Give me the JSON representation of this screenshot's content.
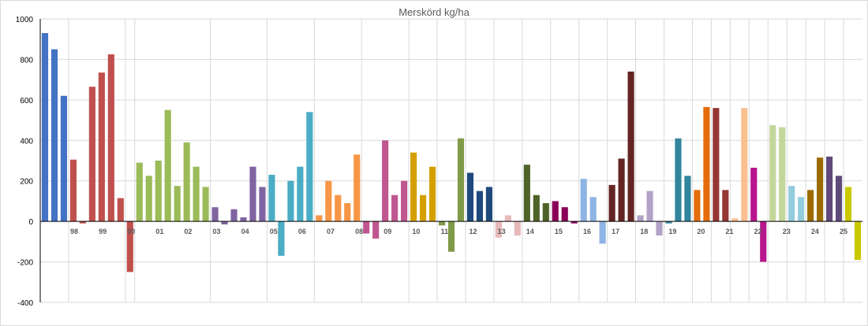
{
  "chart_data": {
    "type": "bar",
    "title": "Merskörd kg/ha",
    "xlabel": "",
    "ylabel": "",
    "ylim": [
      -400,
      1000
    ],
    "yticks": [
      -400,
      -200,
      0,
      200,
      400,
      600,
      800,
      1000
    ],
    "grid": true,
    "legend": "none",
    "groups": [
      {
        "label": "",
        "color": "#4472c4",
        "values": [
          930,
          850,
          620
        ]
      },
      {
        "label": "98",
        "color": "#c0504d",
        "values": [
          305,
          -10,
          665,
          735,
          825,
          115
        ]
      },
      {
        "label": "99",
        "color": "#c0504d",
        "values": [
          -250
        ]
      },
      {
        "label": "",
        "color": "#9bbb59",
        "values": [
          290,
          225,
          300,
          550,
          175,
          390,
          270,
          170
        ]
      },
      {
        "label": "00",
        "color": "#8064a2",
        "values": [
          70,
          -15,
          60,
          20,
          270,
          170
        ]
      },
      {
        "label": "01",
        "color": "#4bacc6",
        "values": [
          230,
          -170,
          200,
          270,
          540
        ]
      },
      {
        "label": "02",
        "color": "#f79646",
        "values": [
          30,
          200,
          130,
          90,
          330
        ]
      },
      {
        "label": "03",
        "color": "#c0568f",
        "values": [
          -60,
          -85,
          400,
          130,
          200
        ]
      },
      {
        "label": "04",
        "color": "#d4a000",
        "values": [
          340,
          130,
          270
        ]
      },
      {
        "label": "05",
        "color": "#7f9a48",
        "values": [
          -20,
          -150,
          410
        ]
      },
      {
        "label": "06",
        "color": "#1f497d",
        "values": [
          240,
          150,
          170
        ]
      },
      {
        "label": "07",
        "color": "#e6b9b8",
        "values": [
          -80,
          30,
          -70
        ]
      },
      {
        "label": "08",
        "color": "#4f6228",
        "values": [
          280,
          130,
          90
        ]
      },
      {
        "label": "09",
        "color": "#8b0057",
        "values": [
          100,
          70,
          -10
        ]
      },
      {
        "label": "10",
        "color": "#8eb4e3",
        "values": [
          210,
          120,
          -110
        ]
      },
      {
        "label": "11",
        "color": "#632523",
        "values": [
          180,
          310,
          740
        ]
      },
      {
        "label": "12",
        "color": "#b3a2c7",
        "values": [
          30,
          150,
          -70
        ]
      },
      {
        "label": "13",
        "color": "#31859c",
        "values": [
          -10,
          410,
          225
        ]
      },
      {
        "label": "14",
        "color": "#e46c0a",
        "values": [
          155,
          565
        ]
      },
      {
        "label": "15",
        "color": "#953735",
        "values": [
          560,
          155
        ]
      },
      {
        "label": "16",
        "color": "#fac090",
        "values": [
          15,
          560
        ]
      },
      {
        "label": "17",
        "color": "#b7158c",
        "values": [
          265,
          -200
        ]
      },
      {
        "label": "18",
        "color": "#c4d79b",
        "values": [
          475,
          465
        ]
      },
      {
        "label": "19",
        "color": "#93cddd",
        "values": [
          175,
          120
        ]
      },
      {
        "label": "20",
        "color": "#9c6b00",
        "values": [
          155,
          315
        ]
      },
      {
        "label": "21",
        "color": "#604a7b",
        "values": [
          320,
          225
        ]
      },
      {
        "label": "22",
        "color": "#c8c800",
        "values": [
          170,
          -190
        ]
      }
    ],
    "xtick_labels": [
      "98",
      "99",
      "00",
      "01",
      "02",
      "03",
      "04",
      "05",
      "06",
      "07",
      "08",
      "09",
      "10",
      "11",
      "12",
      "13",
      "14",
      "15",
      "16",
      "17",
      "18",
      "19",
      "20",
      "21",
      "22",
      "23",
      "24",
      "25"
    ]
  }
}
